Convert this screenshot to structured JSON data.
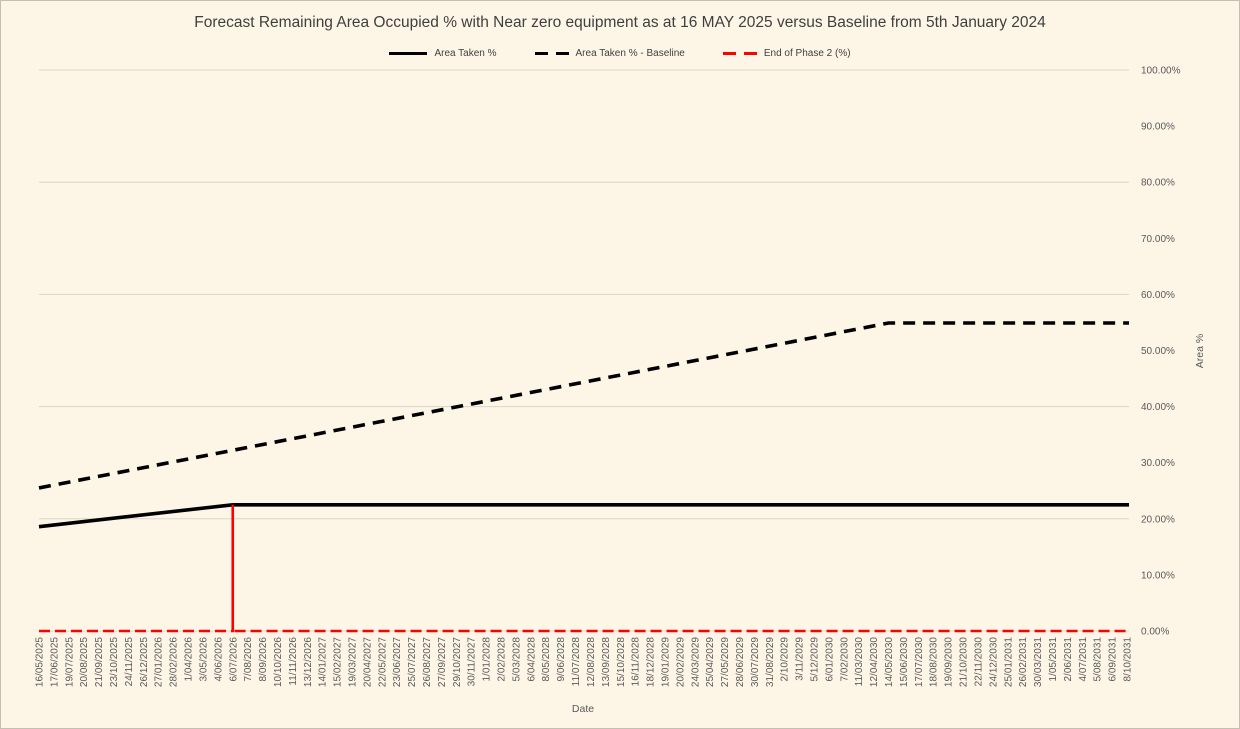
{
  "chart": {
    "title": "Forecast Remaining Area Occupied % with Near zero equipment as at 16 MAY 2025 versus Baseline from 5th January 2024",
    "legend": [
      {
        "label": "Area Taken %",
        "swatch": "solid-black"
      },
      {
        "label": "Area Taken % - Baseline",
        "swatch": "dashed-black"
      },
      {
        "label": "End of Phase 2 (%)",
        "swatch": "dashed-red"
      }
    ],
    "colors": {
      "background": "#FDF6E7",
      "border": "#C3C0B2",
      "grid": "#D9D5C9",
      "title_text": "#3F3F3F",
      "axis_text": "#595959",
      "series_black": "#000000",
      "series_red": "#FF0000"
    }
  },
  "chart_data": {
    "type": "line",
    "title": "Forecast Remaining Area Occupied % with Near zero equipment as at 16 MAY 2025 versus Baseline from 5th January 2024",
    "xlabel": "Date",
    "ylabel": "Area %",
    "ylim": [
      0,
      100
    ],
    "y_tick_step_pct": 10,
    "y_gridline_step_pct": 20,
    "y_tick_labels": [
      "100.00%",
      "90.00%",
      "80.00%",
      "70.00%",
      "60.00%",
      "50.00%",
      "40.00%",
      "30.00%",
      "20.00%",
      "10.00%",
      "0.00%"
    ],
    "legend_position": "top",
    "grid": "horizontal-only",
    "categories": [
      "16/05/2025",
      "17/06/2025",
      "19/07/2025",
      "20/08/2025",
      "21/09/2025",
      "23/10/2025",
      "24/11/2025",
      "26/12/2025",
      "27/01/2026",
      "28/02/2026",
      "1/04/2026",
      "3/05/2026",
      "4/06/2026",
      "6/07/2026",
      "7/08/2026",
      "8/09/2026",
      "10/10/2026",
      "11/11/2026",
      "13/12/2026",
      "14/01/2027",
      "15/02/2027",
      "19/03/2027",
      "20/04/2027",
      "22/05/2027",
      "23/06/2027",
      "25/07/2027",
      "26/08/2027",
      "27/09/2027",
      "29/10/2027",
      "30/11/2027",
      "1/01/2028",
      "2/02/2028",
      "5/03/2028",
      "6/04/2028",
      "8/05/2028",
      "9/06/2028",
      "11/07/2028",
      "12/08/2028",
      "13/09/2028",
      "15/10/2028",
      "16/11/2028",
      "18/12/2028",
      "19/01/2029",
      "20/02/2029",
      "24/03/2029",
      "25/04/2029",
      "27/05/2029",
      "28/06/2029",
      "30/07/2029",
      "31/08/2029",
      "2/10/2029",
      "3/11/2029",
      "5/12/2029",
      "6/01/2030",
      "7/02/2030",
      "11/03/2030",
      "12/04/2030",
      "14/05/2030",
      "15/06/2030",
      "17/07/2030",
      "18/08/2030",
      "19/09/2030",
      "21/10/2030",
      "22/11/2030",
      "24/12/2030",
      "25/01/2031",
      "26/02/2031",
      "30/03/2031",
      "1/05/2031",
      "2/06/2031",
      "4/07/2031",
      "5/08/2031",
      "6/09/2031",
      "8/10/2031"
    ],
    "series": [
      {
        "name": "Area Taken %",
        "style": "solid",
        "color": "#000000",
        "stroke_width": 3.6,
        "dash": null,
        "keypoints": [
          {
            "date": "16/05/2025",
            "value": 18.6
          },
          {
            "date": "6/07/2026",
            "value": 22.5
          },
          {
            "date": "8/10/2031",
            "value": 22.5
          }
        ],
        "interpolation": "linear"
      },
      {
        "name": "Area Taken % - Baseline",
        "style": "dashed",
        "color": "#000000",
        "stroke_width": 3.6,
        "dash": [
          12,
          8
        ],
        "keypoints": [
          {
            "date": "16/05/2025",
            "value": 25.5
          },
          {
            "date": "14/05/2030",
            "value": 54.9
          },
          {
            "date": "8/10/2031",
            "value": 54.9
          }
        ],
        "interpolation": "linear"
      },
      {
        "name": "End of Phase 2 (%)",
        "style": "dashed",
        "color": "#FF0000",
        "stroke_width": 2.6,
        "dash": [
          11,
          5
        ],
        "keypoints": [
          {
            "date": "16/05/2025",
            "value": 0
          },
          {
            "date": "6/07/2026",
            "value": 0
          },
          {
            "date": "6/07/2026",
            "value": 22.5
          },
          {
            "date": "6/07/2026",
            "value": 0
          },
          {
            "date": "8/10/2031",
            "value": 0
          }
        ],
        "interpolation": "linear"
      }
    ]
  }
}
